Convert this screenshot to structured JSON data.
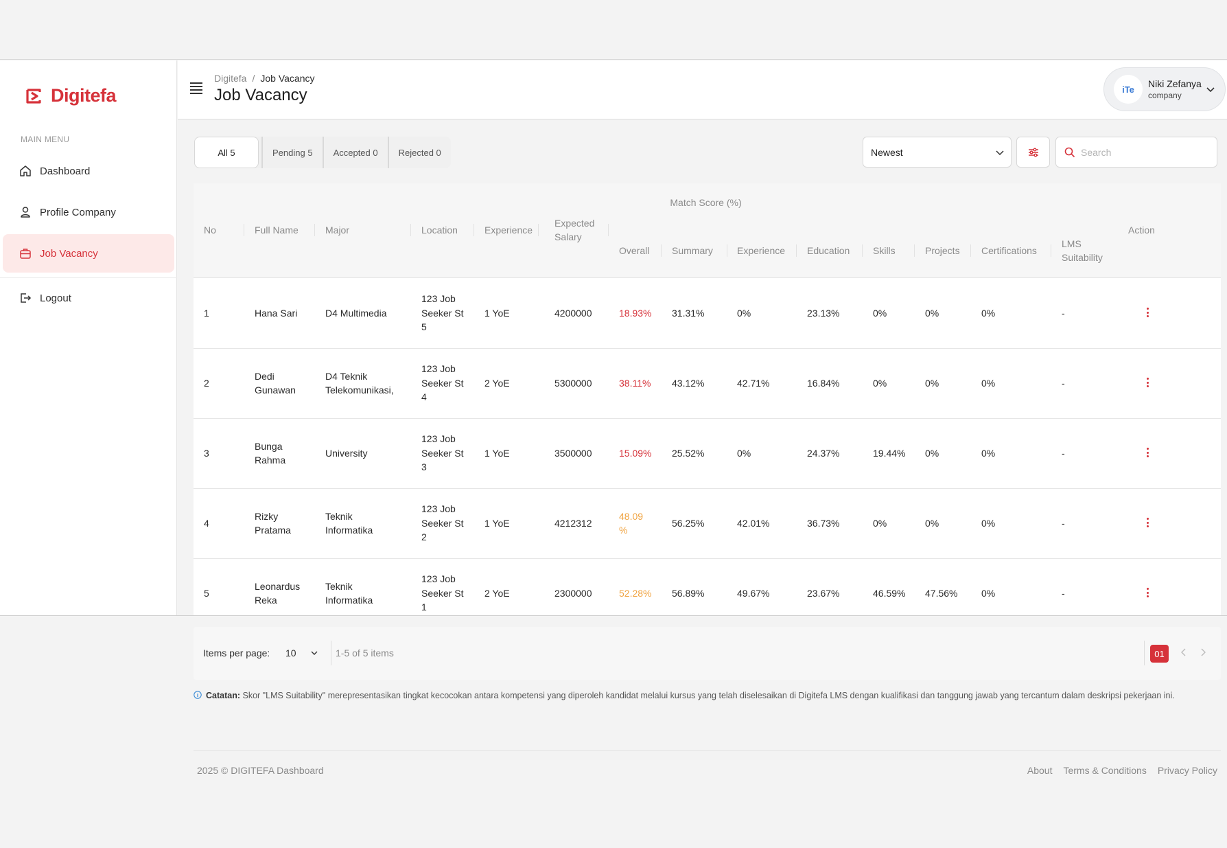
{
  "brand": {
    "name": "Digitefa",
    "color": "#d6323a"
  },
  "sidebar": {
    "section_label": "MAIN MENU",
    "items": [
      {
        "label": "Dashboard",
        "icon": "home-icon"
      },
      {
        "label": "Profile Company",
        "icon": "user-icon"
      },
      {
        "label": "Job Vacancy",
        "icon": "briefcase-icon",
        "active": true
      },
      {
        "label": "Logout",
        "icon": "logout-icon"
      }
    ]
  },
  "header": {
    "breadcrumb": [
      "Digitefa",
      "/",
      "Job Vacancy"
    ],
    "title": "Job Vacancy",
    "user": {
      "avatar_text": "iTe",
      "name": "Niki Zefanya",
      "role": "company"
    }
  },
  "toolbar": {
    "tabs": [
      {
        "label": "All 5",
        "selected": true
      },
      {
        "label": "Pending 5"
      },
      {
        "label": "Accepted 0"
      },
      {
        "label": "Rejected 0"
      }
    ],
    "sort_value": "Newest",
    "search_placeholder": "Search"
  },
  "table": {
    "group_header": "Match Score (%)",
    "columns": {
      "no": "No",
      "full_name": "Full Name",
      "major": "Major",
      "location": "Location",
      "experience": "Experience",
      "expected_salary_1": "Expected",
      "expected_salary_2": "Salary",
      "overall": "Overall",
      "summary": "Summary",
      "exp_score": "Experience",
      "education": "Education",
      "skills": "Skills",
      "projects": "Projects",
      "certifications": "Certifications",
      "lms_1": "LMS",
      "lms_2": "Suitability",
      "action": "Action"
    },
    "rows": [
      {
        "no": "1",
        "name": [
          "Hana Sari"
        ],
        "major": [
          "D4 Multimedia"
        ],
        "location": [
          "123 Job",
          "Seeker St",
          "5"
        ],
        "experience": "1 YoE",
        "salary": "4200000",
        "overall": [
          "18.93%"
        ],
        "overall_level": "red",
        "summary": "31.31%",
        "exp_score": "0%",
        "education": "23.13%",
        "skills": "0%",
        "projects": "0%",
        "certifications": "0%",
        "lms": "-"
      },
      {
        "no": "2",
        "name": [
          "Dedi",
          "Gunawan"
        ],
        "major": [
          "D4 Teknik",
          "Telekomunikasi,"
        ],
        "location": [
          "123 Job",
          "Seeker St",
          "4"
        ],
        "experience": "2 YoE",
        "salary": "5300000",
        "overall": [
          "38.11%"
        ],
        "overall_level": "red",
        "summary": "43.12%",
        "exp_score": "42.71%",
        "education": "16.84%",
        "skills": "0%",
        "projects": "0%",
        "certifications": "0%",
        "lms": "-"
      },
      {
        "no": "3",
        "name": [
          "Bunga",
          "Rahma"
        ],
        "major": [
          "University"
        ],
        "location": [
          "123 Job",
          "Seeker St",
          "3"
        ],
        "experience": "1 YoE",
        "salary": "3500000",
        "overall": [
          "15.09%"
        ],
        "overall_level": "red",
        "summary": "25.52%",
        "exp_score": "0%",
        "education": "24.37%",
        "skills": "19.44%",
        "projects": "0%",
        "certifications": "0%",
        "lms": "-"
      },
      {
        "no": "4",
        "name": [
          "Rizky",
          "Pratama"
        ],
        "major": [
          "Teknik",
          "Informatika"
        ],
        "location": [
          "123 Job",
          "Seeker St",
          "2"
        ],
        "experience": "1 YoE",
        "salary": "4212312",
        "overall": [
          "48.09",
          "%"
        ],
        "overall_level": "orange",
        "summary": "56.25%",
        "exp_score": "42.01%",
        "education": "36.73%",
        "skills": "0%",
        "projects": "0%",
        "certifications": "0%",
        "lms": "-"
      },
      {
        "no": "5",
        "name": [
          "Leonardus",
          "Reka"
        ],
        "major": [
          "Teknik",
          "Informatika"
        ],
        "location": [
          "123 Job",
          "Seeker St",
          "1"
        ],
        "experience": "2 YoE",
        "salary": "2300000",
        "overall": [
          "52.28%"
        ],
        "overall_level": "orange",
        "summary": "56.89%",
        "exp_score": "49.67%",
        "education": "23.67%",
        "skills": "46.59%",
        "projects": "47.56%",
        "certifications": "0%",
        "lms": "-"
      }
    ]
  },
  "pagination": {
    "items_per_page_label": "Items per page:",
    "items_per_page": "10",
    "range": "1-5 of 5 items",
    "current_page": "01"
  },
  "note": {
    "label": "Catatan:",
    "text": "Skor \"LMS Suitability\" merepresentasikan tingkat kecocokan antara kompetensi yang diperoleh kandidat melalui kursus yang telah diselesaikan di Digitefa LMS dengan kualifikasi dan tanggung jawab yang tercantum dalam deskripsi pekerjaan ini."
  },
  "footer": {
    "copyright": "2025 © DIGITEFA Dashboard",
    "links": [
      "About",
      "Terms & Conditions",
      "Privacy Policy"
    ]
  }
}
